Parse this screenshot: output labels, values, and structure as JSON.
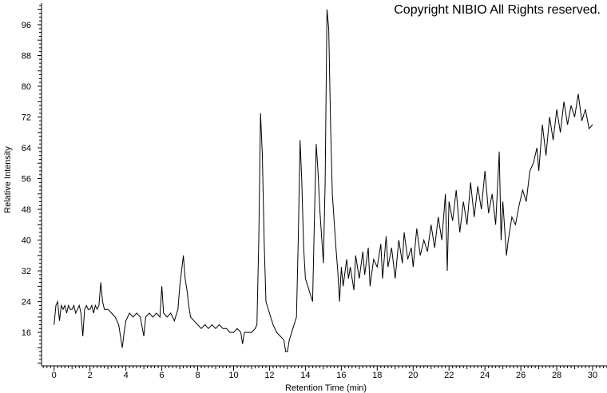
{
  "copyright": "Copyright NIBIO All Rights reserved.",
  "chart_data": {
    "type": "line",
    "title": "",
    "xlabel": "Retention Time (min)",
    "ylabel": "Relative Intensity",
    "xlim": [
      -0.7,
      30.8
    ],
    "ylim": [
      7.3,
      101.6
    ],
    "x_ticks": [
      0,
      2,
      4,
      6,
      8,
      10,
      12,
      14,
      16,
      18,
      20,
      22,
      24,
      26,
      28,
      30
    ],
    "y_ticks": [
      16,
      24,
      32,
      40,
      48,
      56,
      64,
      72,
      80,
      88,
      96
    ],
    "grid": false,
    "line_color": "#000000",
    "x": [
      0.0,
      0.1,
      0.2,
      0.3,
      0.4,
      0.5,
      0.6,
      0.7,
      0.8,
      0.9,
      1.0,
      1.1,
      1.2,
      1.3,
      1.4,
      1.5,
      1.6,
      1.7,
      1.8,
      1.9,
      2.0,
      2.1,
      2.2,
      2.3,
      2.4,
      2.5,
      2.6,
      2.7,
      2.8,
      3.0,
      3.2,
      3.4,
      3.6,
      3.8,
      3.9,
      4.0,
      4.2,
      4.4,
      4.6,
      4.8,
      5.0,
      5.1,
      5.3,
      5.5,
      5.7,
      5.9,
      6.0,
      6.1,
      6.3,
      6.5,
      6.7,
      6.9,
      7.0,
      7.1,
      7.2,
      7.3,
      7.4,
      7.5,
      7.6,
      7.8,
      8.0,
      8.2,
      8.4,
      8.6,
      8.8,
      9.0,
      9.2,
      9.4,
      9.6,
      9.8,
      10.0,
      10.2,
      10.4,
      10.5,
      10.6,
      10.8,
      11.0,
      11.2,
      11.3,
      11.4,
      11.5,
      11.6,
      11.7,
      11.8,
      12.0,
      12.2,
      12.4,
      12.6,
      12.8,
      12.9,
      13.0,
      13.1,
      13.3,
      13.5,
      13.6,
      13.7,
      13.8,
      13.9,
      14.0,
      14.2,
      14.4,
      14.5,
      14.6,
      14.7,
      14.8,
      15.0,
      15.1,
      15.2,
      15.3,
      15.4,
      15.5,
      15.7,
      15.8,
      15.9,
      16.0,
      16.1,
      16.3,
      16.4,
      16.5,
      16.7,
      16.8,
      17.0,
      17.2,
      17.3,
      17.5,
      17.6,
      17.8,
      18.0,
      18.2,
      18.3,
      18.5,
      18.6,
      18.8,
      19.0,
      19.2,
      19.4,
      19.5,
      19.7,
      19.9,
      20.0,
      20.2,
      20.4,
      20.6,
      20.8,
      21.0,
      21.2,
      21.4,
      21.6,
      21.8,
      21.9,
      22.0,
      22.2,
      22.4,
      22.6,
      22.8,
      23.0,
      23.2,
      23.4,
      23.6,
      23.8,
      24.0,
      24.2,
      24.4,
      24.6,
      24.8,
      24.9,
      25.0,
      25.2,
      25.3,
      25.5,
      25.7,
      25.9,
      26.1,
      26.3,
      26.5,
      26.7,
      26.9,
      27.0,
      27.2,
      27.4,
      27.6,
      27.8,
      28.0,
      28.2,
      28.4,
      28.6,
      28.8,
      29.0,
      29.2,
      29.4,
      29.6,
      29.8,
      30.0
    ],
    "y": [
      18,
      23,
      24,
      19,
      23,
      22,
      23,
      21,
      23,
      22,
      22,
      23,
      21,
      22,
      23,
      21,
      15,
      22,
      23,
      22,
      22,
      23,
      21,
      23,
      22,
      23,
      29,
      24,
      22,
      22,
      21,
      20,
      18,
      12,
      16,
      19,
      21,
      20,
      21,
      20,
      15,
      20,
      21,
      20,
      21,
      20,
      28,
      21,
      20,
      21,
      19,
      22,
      28,
      32,
      36,
      30,
      27,
      23,
      20,
      19,
      18,
      17,
      18,
      17,
      18,
      17,
      18,
      17,
      17,
      16,
      16,
      17,
      16,
      13,
      16,
      16,
      16,
      17,
      18,
      40,
      73,
      62,
      40,
      24,
      21,
      18,
      16,
      15,
      14,
      11,
      11,
      14,
      17,
      20,
      40,
      66,
      55,
      38,
      30,
      27,
      24,
      45,
      65,
      58,
      48,
      34,
      55,
      100,
      95,
      70,
      52,
      38,
      32,
      24,
      33,
      28,
      35,
      30,
      33,
      27,
      36,
      30,
      37,
      31,
      38,
      28,
      35,
      33,
      39,
      30,
      41,
      33,
      38,
      30,
      40,
      34,
      42,
      35,
      38,
      33,
      43,
      36,
      40,
      37,
      44,
      38,
      46,
      40,
      52,
      32,
      50,
      45,
      53,
      42,
      50,
      44,
      55,
      46,
      54,
      48,
      58,
      47,
      52,
      44,
      63,
      40,
      50,
      36,
      40,
      46,
      44,
      49,
      53,
      50,
      58,
      60,
      64,
      58,
      70,
      62,
      72,
      66,
      74,
      68,
      76,
      70,
      75,
      72,
      78,
      71,
      74,
      69,
      70
    ]
  }
}
